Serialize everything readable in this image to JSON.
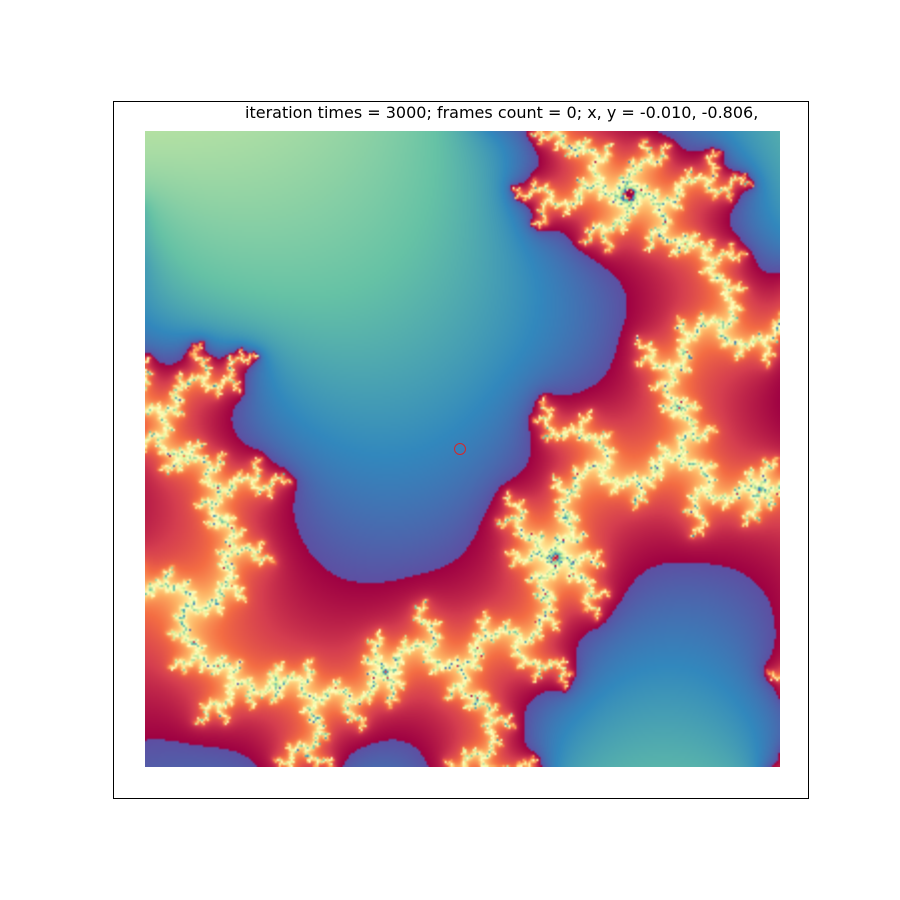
{
  "header": {
    "iteration_label": "iteration times = ",
    "iteration_value": "3000",
    "frames_label": "; frames count = ",
    "frames_value": "0",
    "coords_label": "; x, y = ",
    "coords_value": "-0.010, -0.806,"
  },
  "fractal": {
    "type": "mandelbrot-zoom",
    "colormap": "Spectral",
    "interior_color": "#9e0142",
    "marker_color": "#d62728"
  }
}
